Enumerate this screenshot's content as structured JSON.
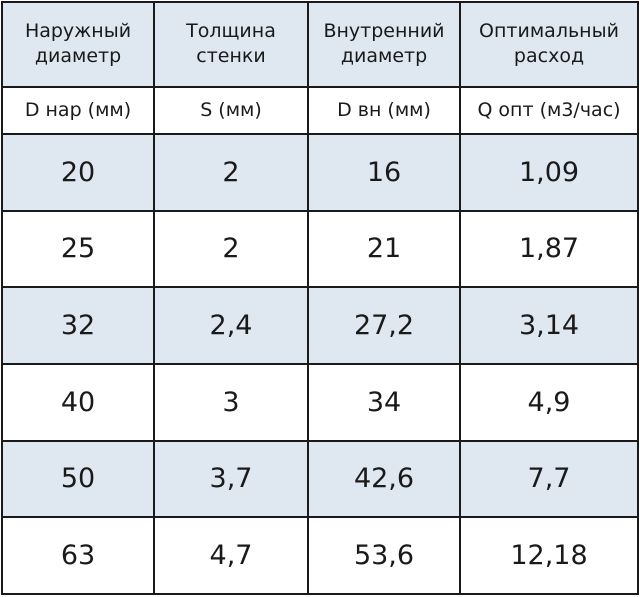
{
  "header": {
    "outer_diameter": [
      "Наружный",
      "диаметр"
    ],
    "wall_thickness": [
      "Толщина",
      "стенки"
    ],
    "inner_diameter": [
      "Внутренний",
      "диаметр"
    ],
    "optimal_flow": [
      "Оптимальный",
      "расход"
    ]
  },
  "units": {
    "outer_diameter": "D нар (мм)",
    "wall_thickness": "S (мм)",
    "inner_diameter": "D вн (мм)",
    "optimal_flow": "Q опт (м3/час)"
  },
  "rows": [
    [
      "20",
      "2",
      "16",
      "1,09"
    ],
    [
      "25",
      "2",
      "21",
      "1,87"
    ],
    [
      "32",
      "2,4",
      "27,2",
      "3,14"
    ],
    [
      "40",
      "3",
      "34",
      "4,9"
    ],
    [
      "50",
      "3,7",
      "42,6",
      "7,7"
    ],
    [
      "63",
      "4,7",
      "53,6",
      "12,18"
    ]
  ],
  "colors": {
    "shaded_row": "#dfe7f1",
    "plain_row": "#ffffff",
    "border": "#1a1a1a"
  }
}
